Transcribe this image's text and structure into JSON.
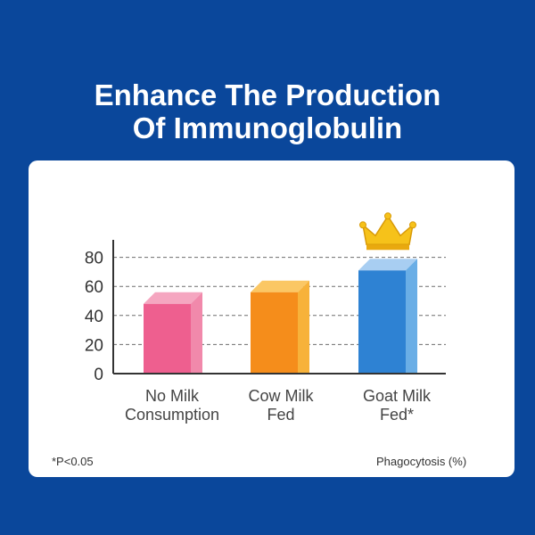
{
  "title": {
    "line1": "Enhance The Production",
    "line2": "Of Immunoglobulin"
  },
  "chart_data": {
    "type": "bar",
    "categories": [
      [
        "No Milk",
        "Consumption"
      ],
      [
        "Cow Milk",
        "Fed"
      ],
      [
        "Goat Milk",
        "Fed*"
      ]
    ],
    "values": [
      48,
      56,
      71
    ],
    "yticks": [
      0,
      20,
      40,
      60,
      80
    ],
    "ylim": [
      0,
      90
    ],
    "grid": "dashed",
    "bar_colors": [
      {
        "front": "#ee5f8f",
        "side": "#f189ab",
        "top": "#f5a6c0"
      },
      {
        "front": "#f58d1b",
        "side": "#f7b23a",
        "top": "#fbc764"
      },
      {
        "front": "#2e82d3",
        "side": "#6aaee6",
        "top": "#a8cef2"
      }
    ],
    "highlight_icon": "crown-icon",
    "footnote": "*P<0.05",
    "ylabel": "Phagocytosis (%)"
  },
  "colors": {
    "background": "#0a479b",
    "card": "#ffffff",
    "crown": "#f6c21a"
  }
}
